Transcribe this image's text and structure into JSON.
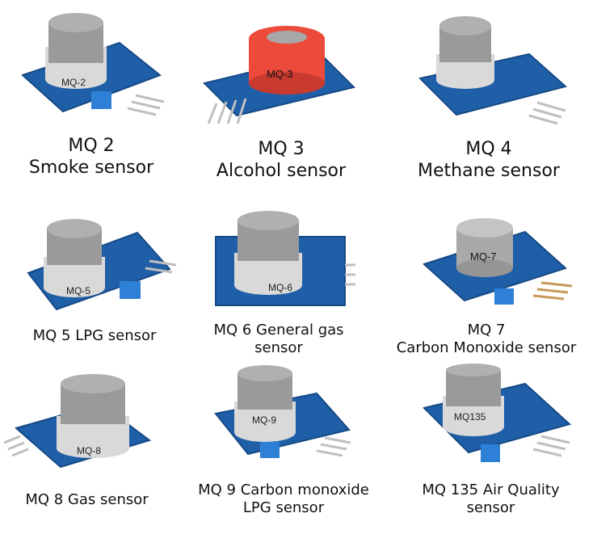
{
  "sensors": [
    {
      "model": "MQ-2",
      "caption_lines": [
        "MQ 2",
        "Smoke sensor"
      ],
      "cap_color": "#8e8e8e"
    },
    {
      "model": "MQ-3",
      "caption_lines": [
        "MQ 3",
        "Alcohol sensor"
      ],
      "cap_color": "#ec4b3c"
    },
    {
      "model": "MQ-4",
      "caption_lines": [
        "MQ 4",
        "Methane sensor"
      ],
      "cap_color": "#8e8e8e"
    },
    {
      "model": "MQ-5",
      "caption_lines": [
        "MQ 5 LPG sensor"
      ],
      "cap_color": "#8e8e8e"
    },
    {
      "model": "MQ-6",
      "caption_lines": [
        "MQ 6 General gas",
        "sensor"
      ],
      "cap_color": "#8e8e8e"
    },
    {
      "model": "MQ-7",
      "caption_lines": [
        "MQ 7",
        "Carbon Monoxide sensor"
      ],
      "cap_color": "#a9a9a9"
    },
    {
      "model": "MQ-8",
      "caption_lines": [
        "MQ 8 Gas sensor"
      ],
      "cap_color": "#8e8e8e"
    },
    {
      "model": "MQ-9",
      "caption_lines": [
        "MQ 9 Carbon monoxide",
        "LPG sensor"
      ],
      "cap_color": "#8e8e8e"
    },
    {
      "model": "MQ135",
      "caption_lines": [
        "MQ 135 Air Quality",
        "sensor"
      ],
      "cap_color": "#8e8e8e"
    }
  ],
  "colors": {
    "board": "#1f5fa8",
    "board_edge": "#164a85",
    "mesh": "#9a9a9a",
    "ring": "#d9d9d9",
    "pot": "#2e7fd6",
    "pins": "#bfbfbf"
  }
}
